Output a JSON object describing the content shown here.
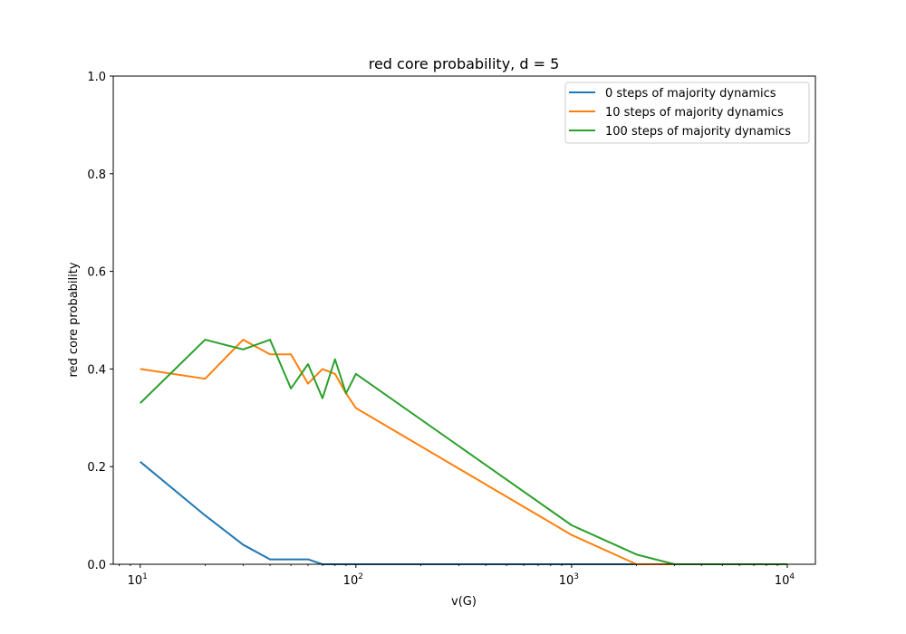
{
  "chart_data": {
    "type": "line",
    "title": "red core probability, d = 5",
    "xlabel": "v(G)",
    "ylabel": "red core probability",
    "x_scale": "log",
    "xlim": [
      7.5,
      13500
    ],
    "ylim": [
      0,
      1.0
    ],
    "x_ticks": [
      10,
      100,
      1000,
      10000
    ],
    "x_tick_labels": [
      {
        "base": "10",
        "exp": "1"
      },
      {
        "base": "10",
        "exp": "2"
      },
      {
        "base": "10",
        "exp": "3"
      },
      {
        "base": "10",
        "exp": "4"
      }
    ],
    "y_ticks": [
      0,
      0.2,
      0.4,
      0.6,
      0.8,
      1.0
    ],
    "y_tick_labels": [
      "0.0",
      "0.2",
      "0.4",
      "0.6",
      "0.8",
      "1.0"
    ],
    "grid": false,
    "legend_position": "top-right",
    "series": [
      {
        "name": "0 steps of majority dynamics",
        "color": "#1f77b4",
        "x": [
          10,
          20,
          30,
          40,
          50,
          60,
          70,
          80,
          90,
          100,
          1000,
          2000,
          3000,
          10000
        ],
        "y": [
          0.21,
          0.1,
          0.04,
          0.01,
          0.01,
          0.01,
          0.0,
          0.0,
          0.0,
          0.0,
          0.0,
          0.0,
          0.0,
          0.0
        ]
      },
      {
        "name": "10 steps of majority dynamics",
        "color": "#ff7f0e",
        "x": [
          10,
          20,
          30,
          40,
          50,
          60,
          70,
          80,
          90,
          100,
          1000,
          2000,
          3000,
          10000
        ],
        "y": [
          0.4,
          0.38,
          0.46,
          0.43,
          0.43,
          0.37,
          0.4,
          0.39,
          0.35,
          0.32,
          0.06,
          0.0,
          0.0,
          0.0
        ]
      },
      {
        "name": "100 steps of majority dynamics",
        "color": "#2ca02c",
        "x": [
          10,
          20,
          30,
          40,
          50,
          60,
          70,
          80,
          90,
          100,
          1000,
          2000,
          3000,
          10000
        ],
        "y": [
          0.33,
          0.46,
          0.44,
          0.46,
          0.36,
          0.41,
          0.34,
          0.42,
          0.35,
          0.39,
          0.08,
          0.02,
          0.0,
          0.0
        ]
      }
    ]
  }
}
